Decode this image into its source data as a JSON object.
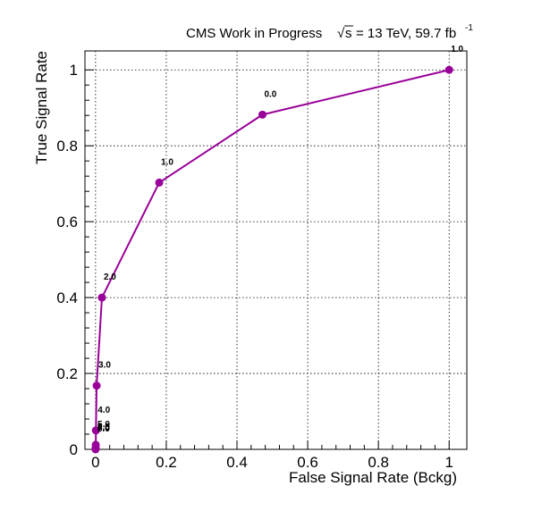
{
  "chart_data": {
    "type": "line",
    "title": "",
    "header": {
      "experiment": "CMS Work in Progress",
      "sqrt_symbol": "√",
      "s_label": "s",
      "energy_text": "= 13 TeV, 59.7 fb",
      "lumi_exponent": "-1"
    },
    "xlabel": "False Signal Rate (Bckg)",
    "ylabel": "True Signal Rate",
    "xlim": [
      -0.03,
      1.05
    ],
    "ylim": [
      0,
      1.05
    ],
    "grid": true,
    "xticks": [
      {
        "value": 0,
        "label": "0"
      },
      {
        "value": 0.2,
        "label": "0.2"
      },
      {
        "value": 0.4,
        "label": "0.4"
      },
      {
        "value": 0.6,
        "label": "0.6"
      },
      {
        "value": 0.8,
        "label": "0.8"
      },
      {
        "value": 1,
        "label": "1"
      }
    ],
    "yticks": [
      {
        "value": 0,
        "label": "0"
      },
      {
        "value": 0.2,
        "label": "0.2"
      },
      {
        "value": 0.4,
        "label": "0.4"
      },
      {
        "value": 0.6,
        "label": "0.6"
      },
      {
        "value": 0.8,
        "label": "0.8"
      },
      {
        "value": 1,
        "label": "1"
      }
    ],
    "series": [
      {
        "color": "#990099",
        "points": [
          {
            "x": 1.0,
            "y": 1.0,
            "label": "1.0"
          },
          {
            "x": 0.472,
            "y": 0.882,
            "label": "0.0"
          },
          {
            "x": 0.18,
            "y": 0.703,
            "label": "1.0"
          },
          {
            "x": 0.018,
            "y": 0.4,
            "label": "2.0"
          },
          {
            "x": 0.003,
            "y": 0.168,
            "label": "3.0"
          },
          {
            "x": 0.001,
            "y": 0.05,
            "label": "4.0"
          },
          {
            "x": 0.0005,
            "y": 0.012,
            "label": "5.0"
          },
          {
            "x": 0.0003,
            "y": 0.005,
            "label": "6.0"
          },
          {
            "x": 0.0001,
            "y": 0.002,
            "label": "7.0"
          },
          {
            "x": 0.0,
            "y": 0.0,
            "label": "8.0"
          }
        ]
      }
    ]
  }
}
